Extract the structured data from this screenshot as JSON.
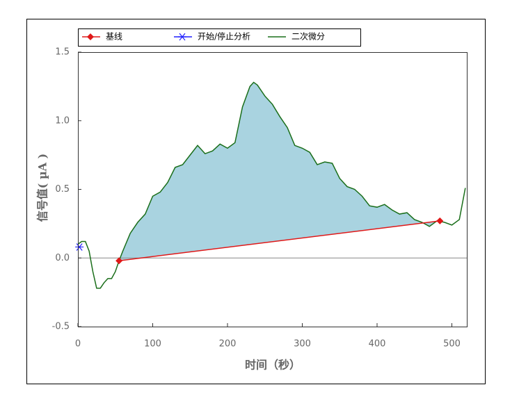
{
  "chart_data": {
    "type": "line",
    "x_label": "时间（秒）",
    "y_label": "信号值( µA )",
    "xlim": [
      0,
      520
    ],
    "ylim": [
      -0.5,
      1.5
    ],
    "xticks": [
      0,
      100,
      200,
      300,
      400,
      500
    ],
    "yticks": [
      -0.5,
      {
        "value": 0,
        "label": "0.0"
      },
      0.5,
      {
        "value": 1,
        "label": "1.0"
      },
      1.5
    ],
    "zero_line": true,
    "fill_between": true,
    "fill_color": "#a9d3e0",
    "series": [
      {
        "name": "基线",
        "color": "#e01818",
        "marker": "diamond",
        "x": [
          55,
          484
        ],
        "values": [
          -0.02,
          0.27
        ]
      },
      {
        "name": "开始/停止分析",
        "color": "#2020ff",
        "marker": "asterisk",
        "x": [
          2
        ],
        "values": [
          0.08
        ]
      },
      {
        "name": "二次微分",
        "color": "#1a6e1a",
        "marker": "none",
        "x": [
          0,
          5,
          10,
          15,
          20,
          25,
          30,
          35,
          40,
          45,
          50,
          55,
          60,
          70,
          80,
          90,
          100,
          110,
          120,
          130,
          140,
          150,
          160,
          170,
          180,
          190,
          200,
          210,
          220,
          230,
          235,
          240,
          250,
          260,
          270,
          280,
          290,
          300,
          310,
          320,
          330,
          340,
          350,
          360,
          370,
          380,
          390,
          400,
          410,
          420,
          430,
          440,
          450,
          460,
          470,
          480,
          490,
          500,
          510,
          518
        ],
        "values": [
          0.1,
          0.12,
          0.12,
          0.05,
          -0.1,
          -0.22,
          -0.22,
          -0.18,
          -0.15,
          -0.15,
          -0.1,
          -0.02,
          0.05,
          0.18,
          0.26,
          0.32,
          0.45,
          0.48,
          0.55,
          0.66,
          0.68,
          0.75,
          0.82,
          0.76,
          0.78,
          0.83,
          0.8,
          0.84,
          1.1,
          1.25,
          1.28,
          1.26,
          1.18,
          1.12,
          1.03,
          0.95,
          0.82,
          0.8,
          0.77,
          0.68,
          0.7,
          0.69,
          0.58,
          0.52,
          0.5,
          0.45,
          0.38,
          0.37,
          0.39,
          0.35,
          0.32,
          0.33,
          0.28,
          0.26,
          0.23,
          0.27,
          0.26,
          0.24,
          0.28,
          0.51
        ]
      }
    ]
  }
}
